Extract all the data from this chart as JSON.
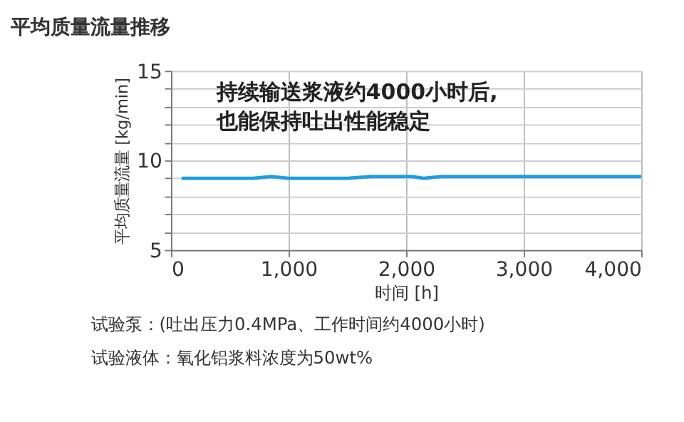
{
  "chart_data": {
    "type": "line",
    "title": "平均质量流量推移",
    "xlabel": "时间 [h]",
    "ylabel": "平均质量流量 [kg/min]",
    "x": [
      90,
      300,
      500,
      700,
      850,
      1000,
      1200,
      1400,
      1500,
      1700,
      1900,
      2050,
      2150,
      2300,
      2500,
      2650,
      2800,
      2900,
      3000,
      3200,
      3400,
      3600,
      3800,
      3900,
      4000
    ],
    "series": [
      {
        "color": "#1e9ee0",
        "values": [
          9.0,
          9.0,
          9.0,
          9.0,
          9.1,
          9.0,
          9.0,
          9.0,
          9.0,
          9.1,
          9.1,
          9.1,
          9.0,
          9.1,
          9.1,
          9.1,
          9.1,
          9.1,
          9.1,
          9.1,
          9.1,
          9.1,
          9.1,
          9.1,
          9.1
        ]
      }
    ],
    "xlim": [
      0,
      4000
    ],
    "xticks": [
      0,
      {
        "value": 1000,
        "label": "1,000"
      },
      {
        "value": 2000,
        "label": "2,000"
      },
      {
        "value": 3000,
        "label": "3,000"
      },
      {
        "value": 4000,
        "label": "4,000"
      }
    ],
    "ylim": [
      5,
      15
    ],
    "yticks": [
      5,
      {
        "value": 6,
        "label": null
      },
      {
        "value": 7,
        "label": null
      },
      {
        "value": 8,
        "label": null
      },
      {
        "value": 9,
        "label": null
      },
      10,
      {
        "value": 11,
        "label": null
      },
      {
        "value": 12,
        "label": null
      },
      {
        "value": 13,
        "label": null
      },
      {
        "value": 14,
        "label": null
      },
      15
    ],
    "grid": true,
    "marker": "none",
    "line_style": "solid",
    "legend": false,
    "annotations": [
      "持续输送浆液约4000小时后,\n也能保持吐出性能稳定",
      "试验泵：(吐出压力0.4MPa、工作时间约4000小时)",
      "试验液体：氧化铝浆料浓度为50wt%"
    ]
  }
}
